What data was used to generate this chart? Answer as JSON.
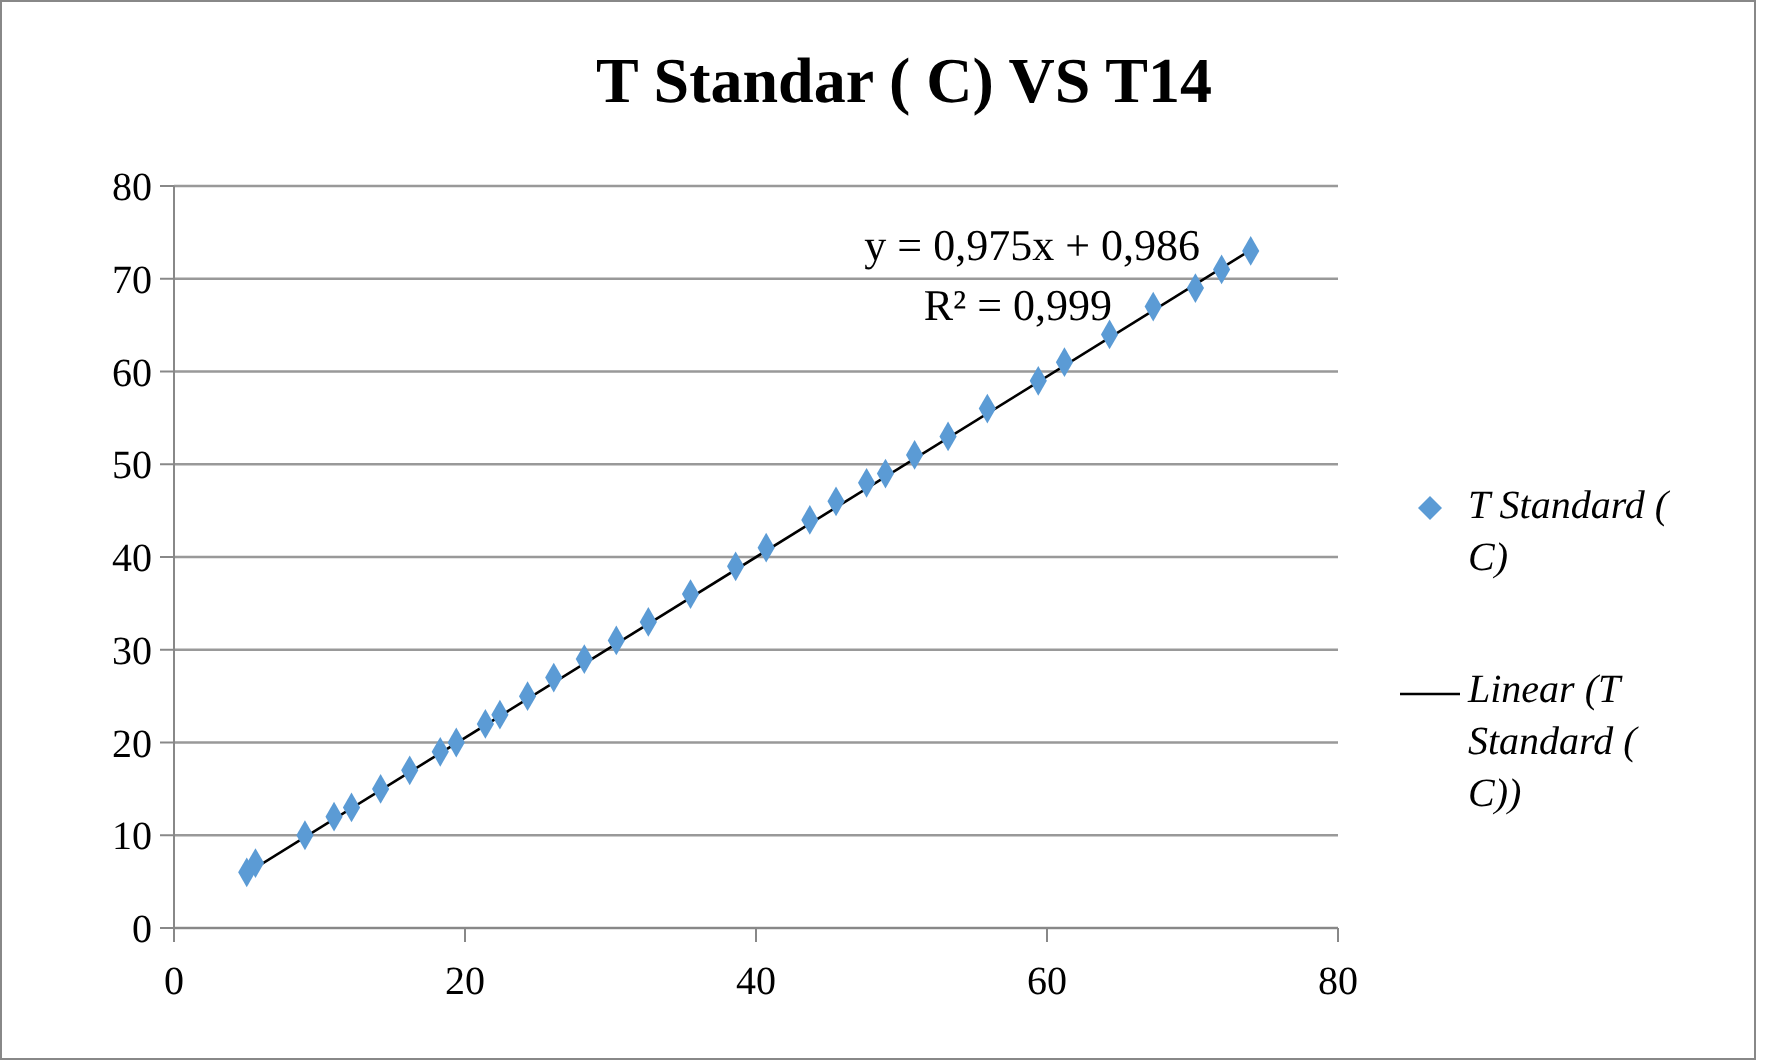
{
  "chart_data": {
    "type": "scatter",
    "title": "T Standar ( C) VS T14",
    "xlim": [
      0,
      80
    ],
    "xticks": [
      0,
      20,
      40,
      60,
      80
    ],
    "ylim": [
      0,
      80
    ],
    "yticks": [
      0,
      10,
      20,
      30,
      40,
      50,
      60,
      70,
      80
    ],
    "grid": "y",
    "legend": "right",
    "marker": "diamond",
    "annotations": [
      "y = 0,975x + 0,986",
      "R² = 0,999"
    ],
    "series": [
      {
        "name": "T Standard ( C)",
        "color": "#5b9bd5",
        "x": [
          5,
          5.6,
          9,
          11,
          12.2,
          14.2,
          16.2,
          18.3,
          19.4,
          21.4,
          22.4,
          24.3,
          26.1,
          28.2,
          30.4,
          32.6,
          35.5,
          38.6,
          40.7,
          43.7,
          45.5,
          47.6,
          48.9,
          50.9,
          53.2,
          55.9,
          59.4,
          61.2,
          64.3,
          67.3,
          70.2,
          72,
          74
        ],
        "values": [
          6,
          7,
          10,
          12,
          13,
          15,
          17,
          19,
          20,
          22,
          23,
          25,
          27,
          29,
          31,
          33,
          36,
          39,
          41,
          44,
          46,
          48,
          49,
          51,
          53,
          56,
          59,
          61,
          64,
          67,
          69,
          71,
          73
        ]
      },
      {
        "name": "Linear (T Standard ( C))",
        "type": "line",
        "color": "#000000",
        "marker": "none",
        "x": [
          5,
          74
        ],
        "values": [
          5.9,
          73.1
        ]
      }
    ]
  }
}
